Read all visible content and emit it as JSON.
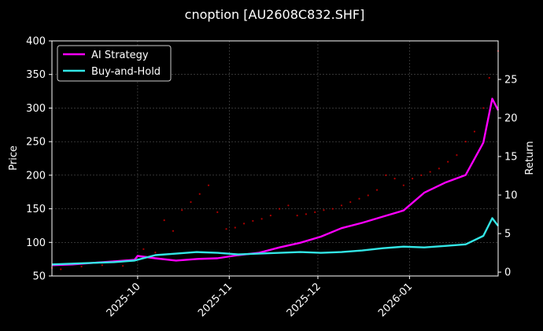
{
  "chart_data": {
    "type": "line",
    "title": "cnoption [AU2608C832.SHF]",
    "ylabel_left": "Price",
    "ylabel_right": "Return",
    "x_ticks": [
      "2025-10",
      "2025-11",
      "2025-12",
      "2026-01"
    ],
    "x_range": [
      "2025-09-02",
      "2026-01-31"
    ],
    "left_y": {
      "range": [
        50,
        400
      ],
      "ticks": [
        50,
        100,
        150,
        200,
        250,
        300,
        350,
        400
      ]
    },
    "right_y": {
      "range": [
        -0.5,
        30
      ],
      "ticks": [
        0,
        5,
        10,
        15,
        20,
        25
      ]
    },
    "grid": true,
    "legend_position": "top-left",
    "series": [
      {
        "name": "AI Strategy",
        "axis": "right",
        "color": "#ff00ff",
        "points": [
          [
            "2025-09-02",
            0.9
          ],
          [
            "2025-09-09",
            1.0
          ],
          [
            "2025-09-16",
            1.2
          ],
          [
            "2025-09-23",
            1.4
          ],
          [
            "2025-09-30",
            1.6
          ],
          [
            "2025-10-01",
            2.1
          ],
          [
            "2025-10-07",
            1.8
          ],
          [
            "2025-10-14",
            1.5
          ],
          [
            "2025-10-21",
            1.7
          ],
          [
            "2025-10-28",
            1.8
          ],
          [
            "2025-11-04",
            2.2
          ],
          [
            "2025-11-11",
            2.5
          ],
          [
            "2025-11-18",
            3.2
          ],
          [
            "2025-11-25",
            3.8
          ],
          [
            "2025-12-02",
            4.6
          ],
          [
            "2025-12-09",
            5.7
          ],
          [
            "2025-12-16",
            6.4
          ],
          [
            "2025-12-23",
            7.2
          ],
          [
            "2025-12-30",
            8.0
          ],
          [
            "2026-01-06",
            10.3
          ],
          [
            "2026-01-13",
            11.6
          ],
          [
            "2026-01-20",
            12.6
          ],
          [
            "2026-01-26",
            16.8
          ],
          [
            "2026-01-29",
            22.5
          ],
          [
            "2026-01-31",
            21.0
          ]
        ]
      },
      {
        "name": "Buy-and-Hold",
        "axis": "right",
        "color": "#33e6e6",
        "points": [
          [
            "2025-09-02",
            1.0
          ],
          [
            "2025-09-09",
            1.1
          ],
          [
            "2025-09-16",
            1.2
          ],
          [
            "2025-09-23",
            1.3
          ],
          [
            "2025-09-30",
            1.5
          ],
          [
            "2025-10-07",
            2.2
          ],
          [
            "2025-10-14",
            2.4
          ],
          [
            "2025-10-21",
            2.6
          ],
          [
            "2025-10-28",
            2.5
          ],
          [
            "2025-11-04",
            2.3
          ],
          [
            "2025-11-11",
            2.4
          ],
          [
            "2025-11-18",
            2.5
          ],
          [
            "2025-11-25",
            2.6
          ],
          [
            "2025-12-02",
            2.5
          ],
          [
            "2025-12-09",
            2.6
          ],
          [
            "2025-12-16",
            2.8
          ],
          [
            "2025-12-23",
            3.1
          ],
          [
            "2025-12-30",
            3.3
          ],
          [
            "2026-01-06",
            3.2
          ],
          [
            "2026-01-13",
            3.4
          ],
          [
            "2026-01-20",
            3.6
          ],
          [
            "2026-01-26",
            4.7
          ],
          [
            "2026-01-29",
            7.0
          ],
          [
            "2026-01-31",
            6.0
          ]
        ]
      },
      {
        "name": "Price",
        "axis": "left",
        "color": "#cc0000",
        "style": "dots",
        "points": [
          [
            "2025-09-02",
            62
          ],
          [
            "2025-09-05",
            60
          ],
          [
            "2025-09-09",
            68
          ],
          [
            "2025-09-12",
            64
          ],
          [
            "2025-09-16",
            70
          ],
          [
            "2025-09-19",
            66
          ],
          [
            "2025-09-23",
            72
          ],
          [
            "2025-09-26",
            65
          ],
          [
            "2025-09-30",
            74
          ],
          [
            "2025-10-03",
            90
          ],
          [
            "2025-10-07",
            85
          ],
          [
            "2025-10-10",
            133
          ],
          [
            "2025-10-13",
            117
          ],
          [
            "2025-10-16",
            148
          ],
          [
            "2025-10-19",
            160
          ],
          [
            "2025-10-22",
            172
          ],
          [
            "2025-10-25",
            185
          ],
          [
            "2025-10-28",
            145
          ],
          [
            "2025-10-31",
            120
          ],
          [
            "2025-11-03",
            122
          ],
          [
            "2025-11-06",
            128
          ],
          [
            "2025-11-09",
            132
          ],
          [
            "2025-11-12",
            135
          ],
          [
            "2025-11-15",
            140
          ],
          [
            "2025-11-18",
            150
          ],
          [
            "2025-11-21",
            155
          ],
          [
            "2025-11-24",
            140
          ],
          [
            "2025-11-27",
            142
          ],
          [
            "2025-11-30",
            145
          ],
          [
            "2025-12-03",
            148
          ],
          [
            "2025-12-06",
            150
          ],
          [
            "2025-12-09",
            155
          ],
          [
            "2025-12-12",
            160
          ],
          [
            "2025-12-15",
            165
          ],
          [
            "2025-12-18",
            170
          ],
          [
            "2025-12-21",
            178
          ],
          [
            "2025-12-24",
            200
          ],
          [
            "2025-12-27",
            195
          ],
          [
            "2025-12-30",
            185
          ],
          [
            "2026-01-02",
            195
          ],
          [
            "2026-01-05",
            200
          ],
          [
            "2026-01-08",
            205
          ],
          [
            "2026-01-11",
            210
          ],
          [
            "2026-01-14",
            220
          ],
          [
            "2026-01-17",
            230
          ],
          [
            "2026-01-20",
            250
          ],
          [
            "2026-01-23",
            265
          ],
          [
            "2026-01-26",
            300
          ],
          [
            "2026-01-28",
            345
          ],
          [
            "2026-01-31",
            385
          ]
        ]
      }
    ]
  }
}
